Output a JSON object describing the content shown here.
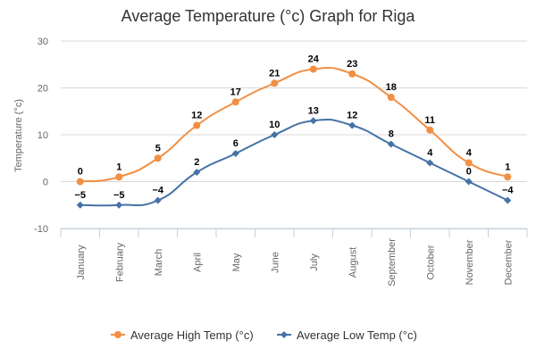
{
  "chart_data": {
    "type": "line",
    "title": "Average Temperature (°c) Graph for Riga",
    "ylabel": "Temperature (°c)",
    "xlabel": "",
    "ylim": [
      -10,
      30
    ],
    "yticks": [
      -10,
      0,
      10,
      20,
      30
    ],
    "grid": true,
    "legend": "bottom",
    "categories": [
      "January",
      "February",
      "March",
      "April",
      "May",
      "June",
      "July",
      "August",
      "September",
      "October",
      "November",
      "December"
    ],
    "series": [
      {
        "name": "Average High Temp (°c)",
        "color": "#f28f43",
        "marker": "circle",
        "values": [
          0,
          1,
          5,
          12,
          17,
          21,
          24,
          23,
          18,
          11,
          4,
          1
        ]
      },
      {
        "name": "Average Low Temp (°c)",
        "color": "#4572a7",
        "marker": "diamond",
        "values": [
          -5,
          -5,
          -4,
          2,
          6,
          10,
          13,
          12,
          8,
          4,
          0,
          -4
        ]
      }
    ]
  }
}
